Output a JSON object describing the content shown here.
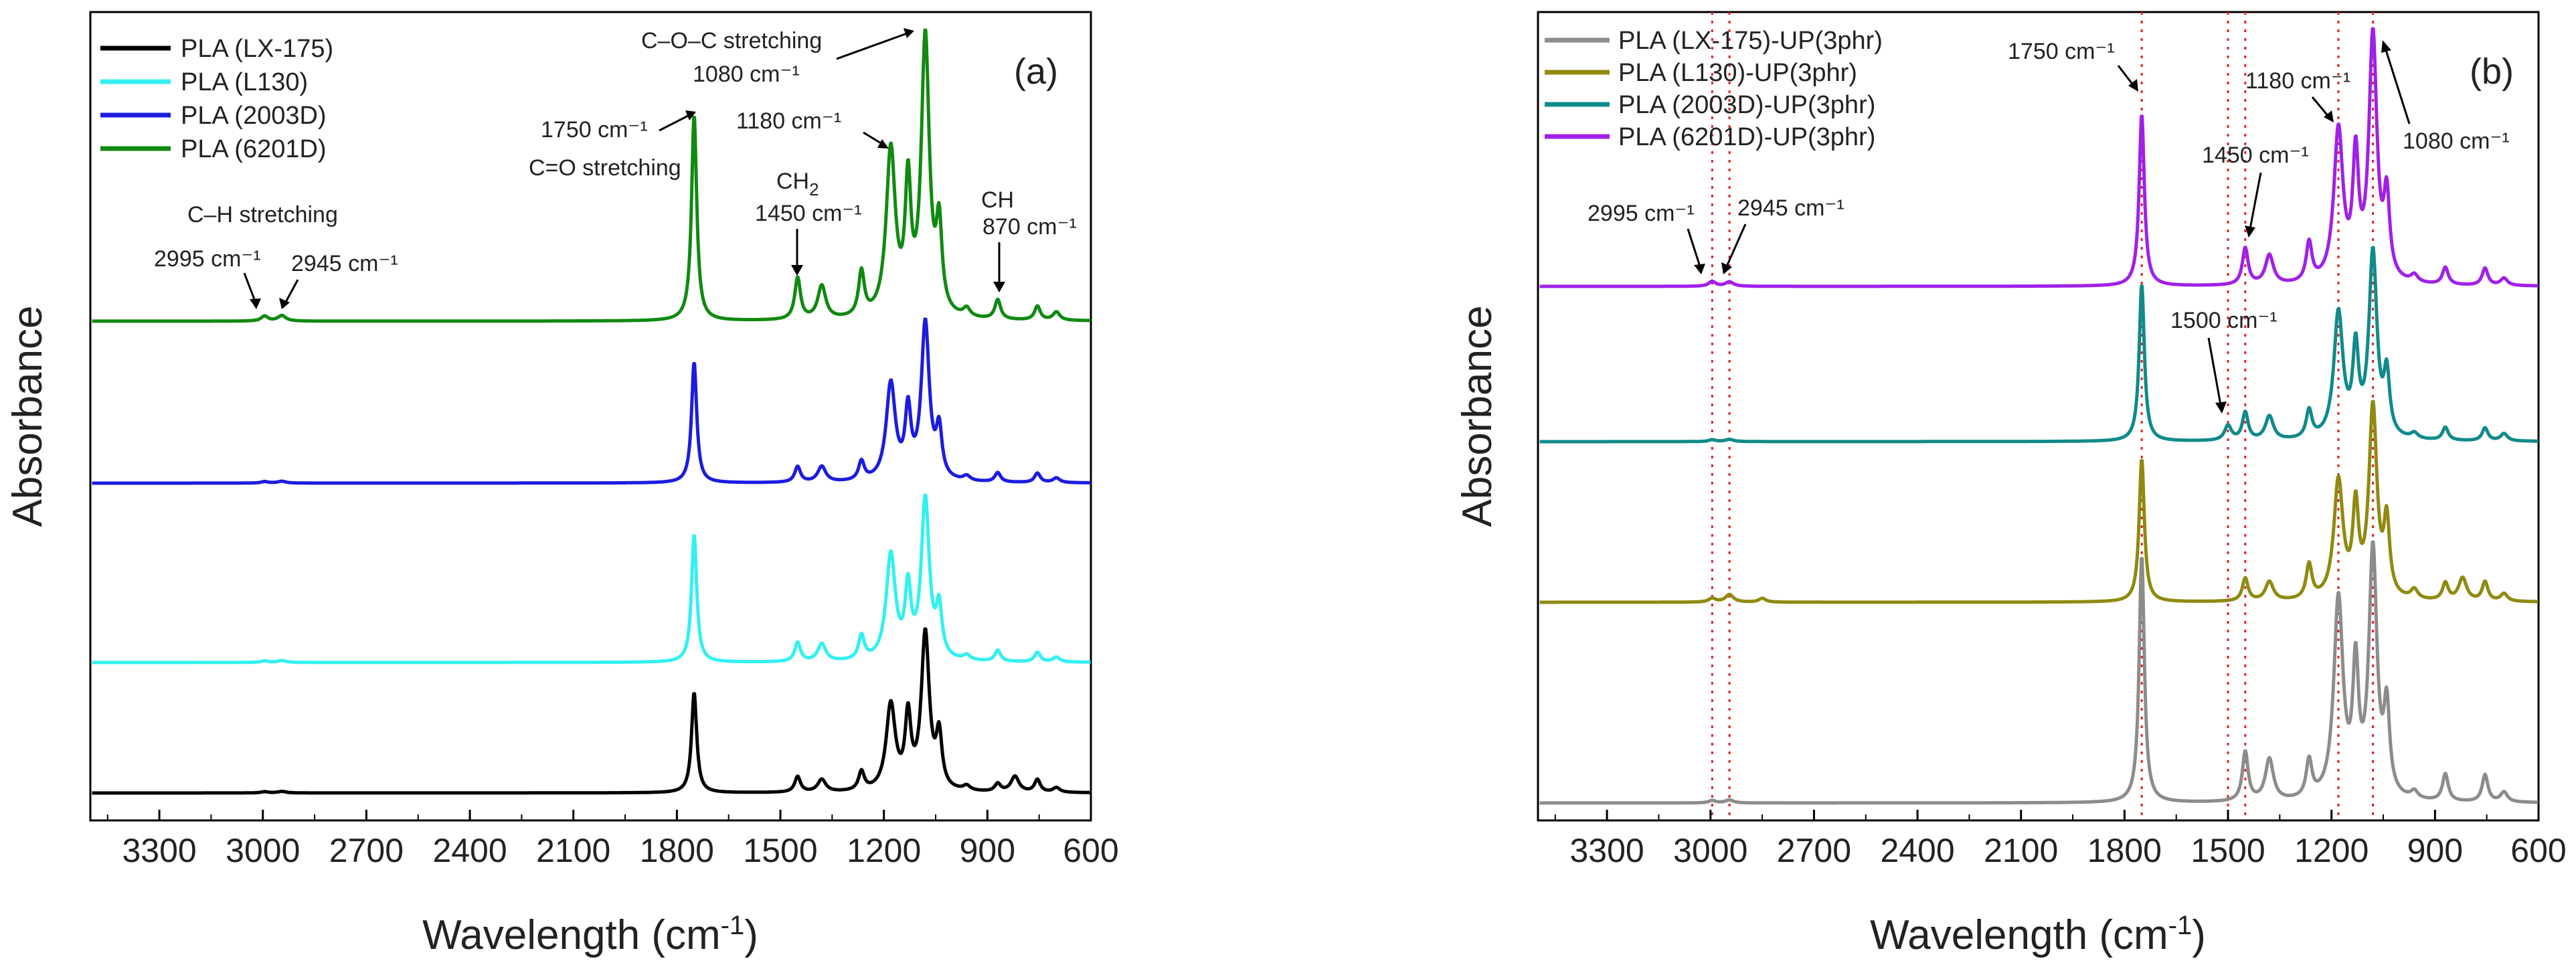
{
  "figure": {
    "panels": [
      {
        "id": "a",
        "label": "(a)",
        "xlabel": "Wavelength",
        "xlabel_unit": "(cm",
        "xlabel_sup": "-1",
        "xlabel_close": ")",
        "ylabel": "Absorbance",
        "legend": [
          {
            "name": "PLA (LX-175)",
            "color": "#000000"
          },
          {
            "name": "PLA (L130)",
            "color": "#33f0f0"
          },
          {
            "name": "PLA (2003D)",
            "color": "#1c1ce0"
          },
          {
            "name": "PLA (6201D)",
            "color": "#108a10"
          }
        ],
        "annotations": {
          "ch_stretch": "C–H stretching",
          "p2995": "2995 cm⁻¹",
          "p2945": "2945 cm⁻¹",
          "p1750": "1750 cm⁻¹",
          "co_stretch": "C=O stretching",
          "ch2": "CH",
          "ch2_sub": "2",
          "p1450": "1450 cm⁻¹",
          "p1180": "1180 cm⁻¹",
          "coc_stretch": "C–O–C stretching",
          "p1080": "1080 cm⁻¹",
          "ch": "CH",
          "p870": "870 cm⁻¹"
        }
      },
      {
        "id": "b",
        "label": "(b)",
        "xlabel": "Wavelength",
        "xlabel_unit": "(cm",
        "xlabel_sup": "-1",
        "xlabel_close": ")",
        "ylabel": "Absorbance",
        "legend": [
          {
            "name": "PLA (LX-175)-UP(3phr)",
            "color": "#8c8c8c"
          },
          {
            "name": "PLA (L130)-UP(3phr)",
            "color": "#8f8a10"
          },
          {
            "name": "PLA (2003D)-UP(3phr)",
            "color": "#108a8a"
          },
          {
            "name": "PLA (6201D)-UP(3phr)",
            "color": "#a020e8"
          }
        ],
        "annotations": {
          "p1750": "1750 cm⁻¹",
          "p1180": "1180 cm⁻¹",
          "p1450": "1450 cm⁻¹",
          "p1080": "1080 cm⁻¹",
          "p2995": "2995 cm⁻¹",
          "p2945": "2945 cm⁻¹",
          "p1500": "1500 cm⁻¹"
        }
      }
    ]
  },
  "chart_data": [
    {
      "type": "line",
      "title": "(a)",
      "xlabel": "Wavelength (cm⁻¹)",
      "ylabel": "Absorbance",
      "xlim": [
        3500,
        600
      ],
      "xticks": [
        3300,
        3000,
        2700,
        2400,
        2100,
        1800,
        1500,
        1200,
        900,
        600
      ],
      "yticks_shown": false,
      "series": [
        {
          "name": "PLA (LX-175)",
          "color": "#000000",
          "baseline": 0.0,
          "scale": 1.0,
          "peaks": [
            [
              2995,
              0.008,
              12
            ],
            [
              2945,
              0.01,
              14
            ],
            [
              1750,
              0.64,
              9
            ],
            [
              1450,
              0.1,
              10
            ],
            [
              1380,
              0.08,
              14
            ],
            [
              1265,
              0.12,
              10
            ],
            [
              1180,
              0.55,
              16
            ],
            [
              1130,
              0.45,
              10
            ],
            [
              1080,
              1.0,
              14
            ],
            [
              1040,
              0.33,
              10
            ],
            [
              960,
              0.03,
              12
            ],
            [
              870,
              0.05,
              10
            ],
            [
              820,
              0.1,
              14
            ],
            [
              755,
              0.08,
              10
            ],
            [
              700,
              0.03,
              12
            ]
          ]
        },
        {
          "name": "PLA (L130)",
          "color": "#33f0f0",
          "baseline": 0.75,
          "scale": 1.12,
          "peaks": [
            [
              2995,
              0.01,
              12
            ],
            [
              2945,
              0.012,
              14
            ],
            [
              1750,
              0.8,
              9
            ],
            [
              1450,
              0.12,
              10
            ],
            [
              1380,
              0.11,
              14
            ],
            [
              1265,
              0.15,
              10
            ],
            [
              1180,
              0.66,
              16
            ],
            [
              1130,
              0.42,
              10
            ],
            [
              1080,
              1.0,
              14
            ],
            [
              1040,
              0.3,
              10
            ],
            [
              960,
              0.03,
              12
            ],
            [
              870,
              0.07,
              10
            ],
            [
              755,
              0.06,
              10
            ],
            [
              700,
              0.03,
              12
            ]
          ]
        },
        {
          "name": "PLA (2003D)",
          "color": "#1c1ce0",
          "baseline": 1.77,
          "scale": 1.04,
          "peaks": [
            [
              2995,
              0.01,
              12
            ],
            [
              2945,
              0.012,
              14
            ],
            [
              1750,
              0.77,
              9
            ],
            [
              1450,
              0.1,
              10
            ],
            [
              1380,
              0.1,
              14
            ],
            [
              1265,
              0.12,
              10
            ],
            [
              1180,
              0.62,
              16
            ],
            [
              1130,
              0.42,
              10
            ],
            [
              1080,
              1.0,
              14
            ],
            [
              1040,
              0.3,
              10
            ],
            [
              960,
              0.03,
              12
            ],
            [
              870,
              0.06,
              10
            ],
            [
              755,
              0.06,
              10
            ],
            [
              700,
              0.03,
              12
            ]
          ]
        },
        {
          "name": "PLA (6201D)",
          "color": "#108a10",
          "baseline": 2.72,
          "scale": 1.5,
          "peaks": [
            [
              2995,
              0.018,
              12
            ],
            [
              2945,
              0.02,
              14
            ],
            [
              1750,
              0.74,
              9
            ],
            [
              1450,
              0.15,
              10
            ],
            [
              1380,
              0.12,
              14
            ],
            [
              1265,
              0.16,
              10
            ],
            [
              1180,
              0.6,
              16
            ],
            [
              1130,
              0.45,
              10
            ],
            [
              1080,
              1.0,
              14
            ],
            [
              1040,
              0.3,
              10
            ],
            [
              960,
              0.03,
              12
            ],
            [
              870,
              0.07,
              10
            ],
            [
              755,
              0.05,
              10
            ],
            [
              700,
              0.03,
              12
            ]
          ]
        }
      ]
    },
    {
      "type": "line",
      "title": "(b)",
      "xlabel": "Wavelength (cm⁻¹)",
      "ylabel": "Absorbance",
      "xlim": [
        3500,
        600
      ],
      "xticks": [
        3300,
        3000,
        2700,
        2400,
        2100,
        1800,
        1500,
        1200,
        900,
        600
      ],
      "yticks_shown": false,
      "reference_lines": [
        2995,
        2945,
        1750,
        1500,
        1450,
        1180,
        1080
      ],
      "series": [
        {
          "name": "PLA (LX-175)-UP(3phr)",
          "color": "#8c8c8c",
          "baseline": 0.0,
          "scale": 1.18,
          "peaks": [
            [
              2995,
              0.01,
              12
            ],
            [
              2945,
              0.012,
              14
            ],
            [
              1750,
              1.0,
              9
            ],
            [
              1450,
              0.2,
              10
            ],
            [
              1380,
              0.17,
              14
            ],
            [
              1265,
              0.15,
              10
            ],
            [
              1180,
              0.81,
              16
            ],
            [
              1130,
              0.5,
              10
            ],
            [
              1080,
              1.0,
              14
            ],
            [
              1040,
              0.34,
              10
            ],
            [
              960,
              0.03,
              12
            ],
            [
              870,
              0.11,
              10
            ],
            [
              755,
              0.11,
              10
            ],
            [
              700,
              0.04,
              12
            ]
          ]
        },
        {
          "name": "PLA (L130)-UP(3phr)",
          "color": "#8f8a10",
          "baseline": 0.9,
          "scale": 1.1,
          "peaks": [
            [
              2995,
              0.02,
              12
            ],
            [
              2945,
              0.04,
              14
            ],
            [
              2850,
              0.02,
              12
            ],
            [
              1750,
              0.75,
              9
            ],
            [
              1450,
              0.12,
              10
            ],
            [
              1380,
              0.1,
              14
            ],
            [
              1265,
              0.18,
              10
            ],
            [
              1180,
              0.62,
              16
            ],
            [
              1130,
              0.45,
              10
            ],
            [
              1080,
              1.0,
              14
            ],
            [
              1040,
              0.38,
              10
            ],
            [
              960,
              0.05,
              12
            ],
            [
              870,
              0.09,
              10
            ],
            [
              820,
              0.12,
              14
            ],
            [
              755,
              0.1,
              10
            ],
            [
              700,
              0.04,
              12
            ]
          ]
        },
        {
          "name": "PLA (2003D)-UP(3phr)",
          "color": "#108a8a",
          "baseline": 1.83,
          "scale": 1.13,
          "peaks": [
            [
              2995,
              0.01,
              12
            ],
            [
              2945,
              0.012,
              14
            ],
            [
              1750,
              0.85,
              9
            ],
            [
              1500,
              0.08,
              12
            ],
            [
              1450,
              0.15,
              10
            ],
            [
              1380,
              0.13,
              14
            ],
            [
              1265,
              0.15,
              10
            ],
            [
              1180,
              0.68,
              16
            ],
            [
              1130,
              0.45,
              10
            ],
            [
              1080,
              1.0,
              14
            ],
            [
              1040,
              0.32,
              10
            ],
            [
              960,
              0.03,
              12
            ],
            [
              870,
              0.07,
              10
            ],
            [
              755,
              0.07,
              10
            ],
            [
              700,
              0.04,
              12
            ]
          ]
        },
        {
          "name": "PLA (6201D)-UP(3phr)",
          "color": "#a020e8",
          "baseline": 2.78,
          "scale": 1.42,
          "peaks": [
            [
              2995,
              0.02,
              12
            ],
            [
              2945,
              0.018,
              14
            ],
            [
              1750,
              0.7,
              9
            ],
            [
              1450,
              0.15,
              10
            ],
            [
              1380,
              0.12,
              14
            ],
            [
              1265,
              0.16,
              10
            ],
            [
              1180,
              0.62,
              16
            ],
            [
              1130,
              0.48,
              10
            ],
            [
              1080,
              1.0,
              14
            ],
            [
              1040,
              0.32,
              10
            ],
            [
              960,
              0.03,
              12
            ],
            [
              870,
              0.07,
              10
            ],
            [
              755,
              0.07,
              10
            ],
            [
              700,
              0.03,
              12
            ]
          ]
        }
      ]
    }
  ]
}
